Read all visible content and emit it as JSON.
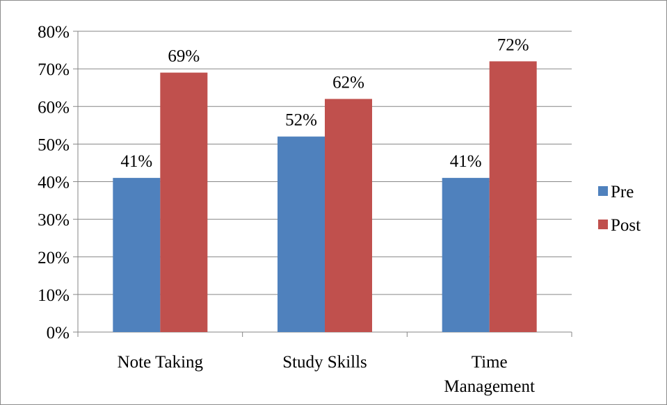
{
  "chart_data": {
    "type": "bar",
    "title": "",
    "xlabel": "",
    "ylabel": "",
    "categories": [
      [
        "Note Taking"
      ],
      [
        "Study Skills"
      ],
      [
        "Time",
        "Management"
      ]
    ],
    "series": [
      {
        "name": "Pre",
        "color": "#4f81bd",
        "values": [
          41,
          52,
          41
        ],
        "labels": [
          "41%",
          "52%",
          "41%"
        ]
      },
      {
        "name": "Post",
        "color": "#c0504d",
        "values": [
          69,
          62,
          72
        ],
        "labels": [
          "69%",
          "62%",
          "72%"
        ]
      }
    ],
    "ylim": [
      0,
      80
    ],
    "yticks": [
      0,
      10,
      20,
      30,
      40,
      50,
      60,
      70,
      80
    ],
    "ytick_labels": [
      "0%",
      "10%",
      "20%",
      "30%",
      "40%",
      "50%",
      "60%",
      "70%",
      "80%"
    ],
    "grid": true,
    "legend_position": "right"
  }
}
